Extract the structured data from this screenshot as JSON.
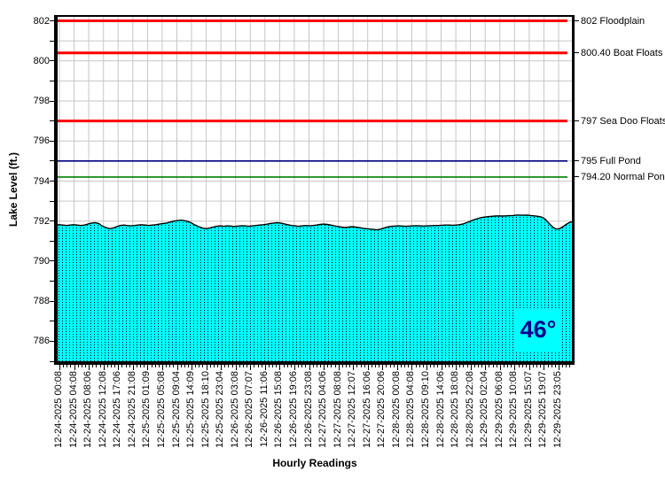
{
  "chart_data": {
    "type": "area",
    "title": "",
    "xlabel": "Hourly Readings",
    "ylabel": "Lake Level (ft.)",
    "ylim": [
      785,
      802.2
    ],
    "grid": true,
    "legend": false,
    "y_tick_labels": [
      "802",
      "800",
      "798",
      "796",
      "794",
      "792",
      "790",
      "788",
      "786"
    ],
    "y_tick_step": 2,
    "y_minor_tick_step": 1,
    "x_tick_labels": [
      "12-24-2025 00:08",
      "12-24-2025 04:08",
      "12-24-2025 08:06",
      "12-24-2025 12:08",
      "12-24-2025 17:06",
      "12-24-2025 21:08",
      "12-25-2025 01:09",
      "12-25-2025 05:08",
      "12-25-2025 09:04",
      "12-25-2025 14:09",
      "12-25-2025 18:10",
      "12-25-2025 23:04",
      "12-26-2025 03:08",
      "12-26-2025 07:07",
      "12-26-2025 11:06",
      "12-26-2025 15:08",
      "12-26-2025 19:06",
      "12-26-2025 23:08",
      "12-27-2025 04:06",
      "12-27-2025 08:08",
      "12-27-2025 12:07",
      "12-27-2025 16:06",
      "12-27-2025 20:06",
      "12-28-2025 00:08",
      "12-28-2025 04:08",
      "12-28-2025 09:10",
      "12-28-2025 14:06",
      "12-28-2025 18:08",
      "12-28-2025 22:08",
      "12-29-2025 02:04",
      "12-29-2025 06:08",
      "12-29-2025 10:08",
      "12-29-2025 15:07",
      "12-29-2025 19:07",
      "12-29-2025 23:05"
    ],
    "series": [
      {
        "name": "Lake Level (ft.)",
        "values": [
          791.82,
          791.8,
          791.78,
          791.8,
          791.82,
          791.8,
          791.78,
          791.8,
          791.85,
          791.9,
          791.92,
          791.88,
          791.75,
          791.68,
          791.62,
          791.65,
          791.72,
          791.78,
          791.8,
          791.78,
          791.76,
          791.78,
          791.8,
          791.82,
          791.8,
          791.78,
          791.8,
          791.82,
          791.85,
          791.88,
          791.9,
          791.95,
          792.0,
          792.02,
          792.05,
          792.02,
          791.98,
          791.9,
          791.8,
          791.72,
          791.66,
          791.62,
          791.65,
          791.7,
          791.74,
          791.76,
          791.74,
          791.76,
          791.75,
          791.73,
          791.75,
          791.77,
          791.76,
          791.74,
          791.76,
          791.78,
          791.8,
          791.82,
          791.84,
          791.88,
          791.9,
          791.92,
          791.9,
          791.86,
          791.82,
          791.78,
          791.76,
          791.74,
          791.76,
          791.78,
          791.76,
          791.78,
          791.8,
          791.83,
          791.85,
          791.83,
          791.8,
          791.76,
          791.73,
          791.7,
          791.68,
          791.7,
          791.72,
          791.7,
          791.67,
          791.64,
          791.62,
          791.6,
          791.58,
          791.56,
          791.6,
          791.66,
          791.71,
          791.74,
          791.75,
          791.76,
          791.75,
          791.74,
          791.75,
          791.76,
          791.77,
          791.76,
          791.75,
          791.76,
          791.77,
          791.78,
          791.78,
          791.79,
          791.8,
          791.8,
          791.79,
          791.8,
          791.82,
          791.86,
          791.92,
          791.99,
          792.06,
          792.12,
          792.17,
          792.2,
          792.22,
          792.24,
          792.25,
          792.26,
          792.25,
          792.26,
          792.27,
          792.28,
          792.3,
          792.3,
          792.29,
          792.3,
          792.28,
          792.26,
          792.24,
          792.2,
          792.1,
          791.9,
          791.72,
          791.6,
          791.62,
          791.72,
          791.85,
          791.95
        ]
      }
    ],
    "reference_lines": [
      {
        "value": 802,
        "label": "802 Floodplain",
        "color": "#FF0000",
        "width": 3
      },
      {
        "value": 800.4,
        "label": "800.40 Boat Floats",
        "color": "#FF0000",
        "width": 3
      },
      {
        "value": 797,
        "label": "797 Sea Doo Floats",
        "color": "#FF0000",
        "width": 3
      },
      {
        "value": 795,
        "label": "795 Full Pond",
        "color": "#000080",
        "width": 1.6
      },
      {
        "value": 794.2,
        "label": "794.20 Normal Pond",
        "color": "#008000",
        "width": 1.6
      }
    ],
    "annotation": {
      "text": "46°"
    },
    "colors": {
      "area_fill": "#00FFFF",
      "area_dots": "#000000",
      "area_edge": "#000000",
      "grid": "#C6C6C6",
      "axis": "#000000",
      "background": "#FFFFFF",
      "annotation_text": "#00008B",
      "annotation_bg": "#00FFFF",
      "label_text": "#000000"
    }
  }
}
